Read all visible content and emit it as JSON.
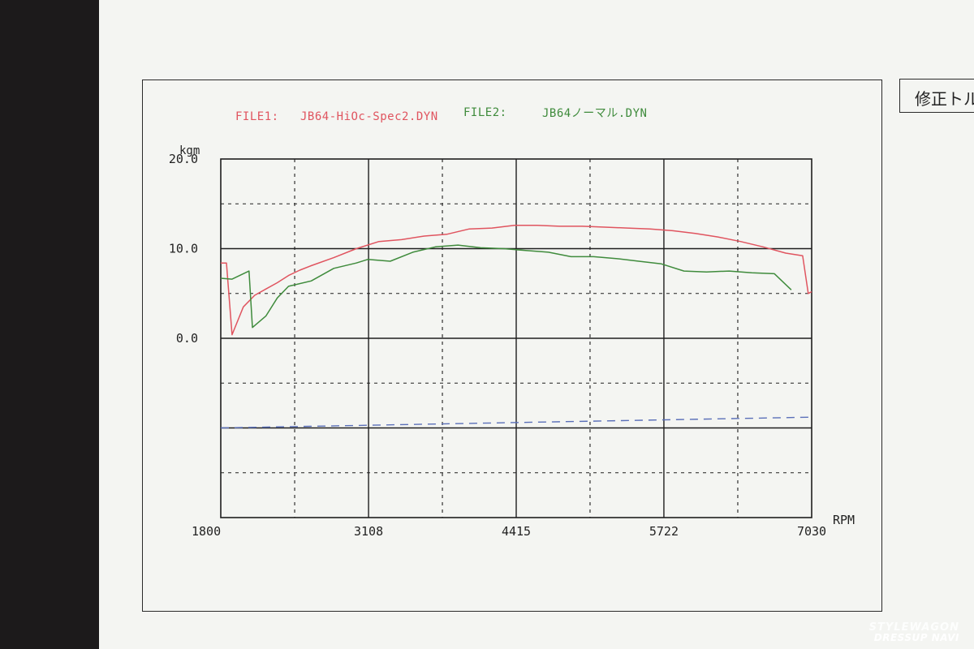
{
  "side_label": "修正トルク",
  "legend": {
    "file1_label": "FILE1:",
    "file1_name": "JB64-HiOc-Spec2.DYN",
    "file2_label": "FILE2:",
    "file2_name": "JB64ノーマル.DYN"
  },
  "watermark": {
    "top": "STYLEWAGON",
    "bottom": "DRESSUP NAVI"
  },
  "colors": {
    "file1": "#e0545f",
    "file2": "#3f8b3c",
    "baseline": "#5a6fb8",
    "grid": "#1e1e1e"
  },
  "chart_data": {
    "type": "line",
    "ylabel": "kgm",
    "xlabel": "RPM",
    "xlim": [
      1800,
      7030
    ],
    "ylim": [
      -20,
      20
    ],
    "x_ticks": [
      1800,
      3108,
      4415,
      5722,
      7030
    ],
    "x_tick_labels": [
      "1800",
      "3108",
      "4415",
      "5722",
      "7030"
    ],
    "y_ticks": [
      20,
      10,
      0
    ],
    "y_tick_labels": [
      "20.0",
      "10.0",
      "0.0"
    ],
    "grid": true,
    "series": [
      {
        "name": "JB64-HiOc-Spec2.DYN",
        "x": [
          1800,
          1850,
          1900,
          2000,
          2100,
          2200,
          2300,
          2400,
          2500,
          2600,
          2800,
          3000,
          3200,
          3400,
          3600,
          3800,
          4000,
          4200,
          4400,
          4600,
          4800,
          5000,
          5200,
          5400,
          5600,
          5800,
          6000,
          6200,
          6400,
          6600,
          6800,
          6950,
          7000,
          7030
        ],
        "values": [
          8.4,
          8.4,
          0.4,
          3.5,
          4.8,
          5.5,
          6.2,
          7.0,
          7.6,
          8.1,
          9.0,
          10.0,
          10.8,
          11.0,
          11.4,
          11.6,
          12.2,
          12.3,
          12.6,
          12.6,
          12.5,
          12.5,
          12.4,
          12.3,
          12.2,
          12.0,
          11.7,
          11.3,
          10.8,
          10.2,
          9.5,
          9.2,
          5.0,
          5.2
        ]
      },
      {
        "name": "JB64ノーマル.DYN",
        "x": [
          1800,
          1900,
          2050,
          2080,
          2200,
          2300,
          2400,
          2600,
          2800,
          3000,
          3100,
          3300,
          3500,
          3700,
          3900,
          4100,
          4300,
          4500,
          4700,
          4900,
          5100,
          5300,
          5500,
          5700,
          5900,
          6100,
          6300,
          6500,
          6700,
          6850
        ],
        "values": [
          6.7,
          6.6,
          7.5,
          1.2,
          2.5,
          4.5,
          5.8,
          6.4,
          7.8,
          8.4,
          8.8,
          8.6,
          9.6,
          10.2,
          10.4,
          10.1,
          10.0,
          9.8,
          9.6,
          9.1,
          9.1,
          8.9,
          8.6,
          8.3,
          7.5,
          7.4,
          7.5,
          7.3,
          7.2,
          5.4
        ]
      },
      {
        "x": [
          1800,
          7030
        ],
        "values": [
          -10.0,
          -8.8
        ]
      }
    ]
  }
}
